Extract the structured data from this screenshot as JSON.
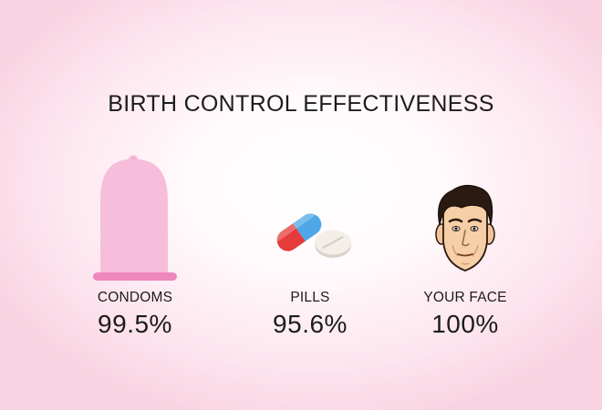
{
  "title": "BIRTH CONTROL EFFECTIVENESS",
  "items": [
    {
      "label": "CONDOMS",
      "value": "99.5%",
      "icon": "condom-icon"
    },
    {
      "label": "PILLS",
      "value": "95.6%",
      "icon": "pills-icon"
    },
    {
      "label": "YOUR FACE",
      "value": "100%",
      "icon": "man-face-icon"
    }
  ],
  "colors": {
    "condom": "#f7bedb",
    "condom_ring": "#ef87bf",
    "pill_red": "#e53b3b",
    "pill_blue": "#4ea8e8",
    "tablet": "#f3efe8"
  }
}
